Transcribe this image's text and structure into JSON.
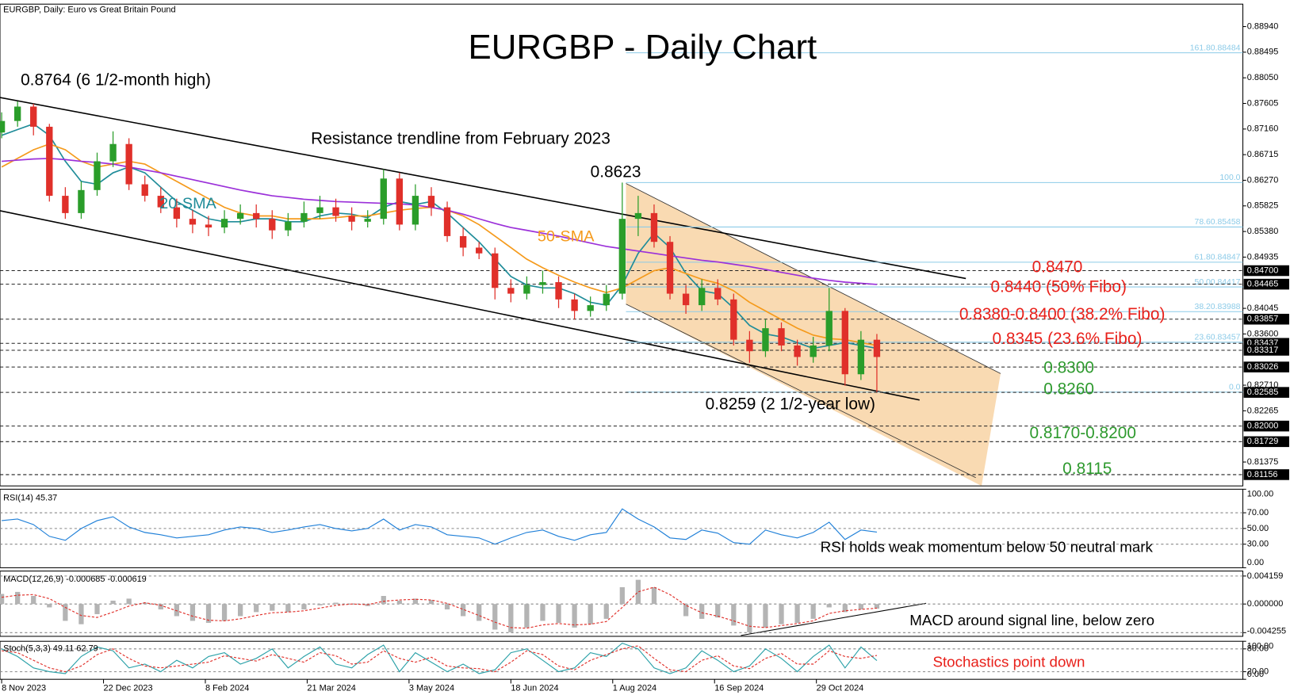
{
  "chart_data": [
    {
      "type": "candlestick",
      "header": "EURGBP, Daily:  Euro vs Great Britain Pound",
      "title": "EURGBP - Daily Chart",
      "annotations": [
        "0.8764 (6 1/2-month high)",
        "Resistance trendline from February 2023",
        "0.8623",
        "0.8259 (2 1/2-year low)"
      ],
      "resistance_labels": {
        "color": "#e8201a",
        "texts": [
          "0.8470",
          "0.8440 (50% Fibo)",
          "0.8380-0.8400 (38.2% Fibo)",
          "0.8345 (23.6% Fibo)"
        ]
      },
      "support_labels": {
        "color": "#2e9a2e",
        "texts": [
          "0.8300",
          "0.8260",
          "0.8170-0.8200",
          "0.8115"
        ]
      },
      "up_color": "#2a9d2a",
      "down_color": "#e0302a",
      "x": [
        0,
        5,
        10,
        15,
        20,
        25,
        30,
        35,
        40,
        45,
        50,
        55,
        60,
        65,
        70,
        75,
        80,
        85,
        90,
        95,
        100,
        105,
        110,
        115,
        120,
        125,
        130,
        135,
        140,
        145,
        150,
        155,
        160,
        165,
        170,
        175,
        180,
        185,
        190,
        195,
        200,
        205,
        210,
        215,
        220,
        225,
        230,
        235,
        240,
        245,
        250,
        255,
        260,
        265,
        270,
        275
      ],
      "open": [
        0.871,
        0.873,
        0.8755,
        0.872,
        0.86,
        0.857,
        0.861,
        0.866,
        0.869,
        0.862,
        0.86,
        0.858,
        0.856,
        0.855,
        0.8545,
        0.856,
        0.857,
        0.856,
        0.854,
        0.8555,
        0.857,
        0.858,
        0.8565,
        0.8555,
        0.856,
        0.863,
        0.855,
        0.86,
        0.858,
        0.853,
        0.851,
        0.85,
        0.844,
        0.843,
        0.8445,
        0.845,
        0.842,
        0.84,
        0.841,
        0.843,
        0.856,
        0.857,
        0.852,
        0.843,
        0.841,
        0.844,
        0.842,
        0.835,
        0.833,
        0.837,
        0.834,
        0.832,
        0.834,
        0.84,
        0.829,
        0.835
      ],
      "high": [
        0.8745,
        0.8764,
        0.876,
        0.8725,
        0.8615,
        0.8625,
        0.8675,
        0.8712,
        0.87,
        0.8635,
        0.8615,
        0.8595,
        0.8575,
        0.8565,
        0.8575,
        0.8585,
        0.8585,
        0.8575,
        0.857,
        0.859,
        0.86,
        0.8595,
        0.858,
        0.8575,
        0.8646,
        0.864,
        0.862,
        0.8615,
        0.859,
        0.8545,
        0.852,
        0.851,
        0.8455,
        0.846,
        0.847,
        0.846,
        0.843,
        0.8425,
        0.8445,
        0.8623,
        0.86,
        0.8585,
        0.853,
        0.8445,
        0.8455,
        0.8455,
        0.843,
        0.8365,
        0.8385,
        0.838,
        0.835,
        0.8355,
        0.844,
        0.8405,
        0.8365,
        0.836
      ],
      "low": [
        0.87,
        0.872,
        0.8705,
        0.859,
        0.856,
        0.856,
        0.86,
        0.865,
        0.861,
        0.859,
        0.857,
        0.8545,
        0.8535,
        0.853,
        0.8535,
        0.855,
        0.8545,
        0.8525,
        0.853,
        0.8545,
        0.856,
        0.8555,
        0.854,
        0.8545,
        0.855,
        0.854,
        0.854,
        0.8565,
        0.852,
        0.8495,
        0.849,
        0.842,
        0.8415,
        0.842,
        0.843,
        0.8405,
        0.8385,
        0.839,
        0.84,
        0.842,
        0.853,
        0.851,
        0.842,
        0.8395,
        0.84,
        0.841,
        0.834,
        0.831,
        0.832,
        0.833,
        0.8305,
        0.831,
        0.833,
        0.827,
        0.828,
        0.8259
      ],
      "close": [
        0.873,
        0.8755,
        0.872,
        0.86,
        0.857,
        0.861,
        0.866,
        0.869,
        0.862,
        0.86,
        0.858,
        0.856,
        0.855,
        0.8545,
        0.856,
        0.857,
        0.856,
        0.854,
        0.8555,
        0.857,
        0.858,
        0.8565,
        0.8555,
        0.856,
        0.863,
        0.855,
        0.86,
        0.858,
        0.853,
        0.851,
        0.85,
        0.844,
        0.843,
        0.8445,
        0.845,
        0.842,
        0.84,
        0.841,
        0.843,
        0.856,
        0.857,
        0.852,
        0.843,
        0.841,
        0.844,
        0.842,
        0.835,
        0.833,
        0.837,
        0.834,
        0.832,
        0.834,
        0.84,
        0.829,
        0.835,
        0.832
      ],
      "series": [
        {
          "name": "20-SMA",
          "color": "#1f8c99",
          "values": [
            0.8705,
            0.8715,
            0.8725,
            0.8705,
            0.866,
            0.8625,
            0.862,
            0.864,
            0.865,
            0.864,
            0.8615,
            0.859,
            0.8575,
            0.856,
            0.8555,
            0.8555,
            0.856,
            0.856,
            0.8555,
            0.8555,
            0.8565,
            0.857,
            0.8568,
            0.8562,
            0.858,
            0.859,
            0.8585,
            0.859,
            0.857,
            0.8545,
            0.852,
            0.849,
            0.846,
            0.8445,
            0.844,
            0.844,
            0.843,
            0.8415,
            0.841,
            0.8445,
            0.85,
            0.8535,
            0.851,
            0.8465,
            0.8435,
            0.843,
            0.8405,
            0.8375,
            0.836,
            0.8355,
            0.8345,
            0.8335,
            0.834,
            0.8345,
            0.834,
            0.8335
          ]
        },
        {
          "name": "50-SMA",
          "color": "#f59a1b",
          "values": [
            0.865,
            0.8665,
            0.868,
            0.869,
            0.868,
            0.866,
            0.865,
            0.8655,
            0.866,
            0.8655,
            0.864,
            0.8625,
            0.861,
            0.8595,
            0.858,
            0.857,
            0.8565,
            0.8565,
            0.856,
            0.856,
            0.856,
            0.8562,
            0.8565,
            0.8565,
            0.857,
            0.8575,
            0.8578,
            0.858,
            0.8575,
            0.8565,
            0.855,
            0.853,
            0.851,
            0.849,
            0.8475,
            0.8462,
            0.845,
            0.844,
            0.8432,
            0.844,
            0.8455,
            0.847,
            0.8475,
            0.8465,
            0.8455,
            0.8448,
            0.8435,
            0.8415,
            0.84,
            0.8385,
            0.837,
            0.8358,
            0.8352,
            0.835,
            0.8345,
            0.834
          ]
        },
        {
          "color": "#9b30d9",
          "values": [
            0.866,
            0.8662,
            0.8664,
            0.8665,
            0.8663,
            0.866,
            0.8658,
            0.8655,
            0.865,
            0.8645,
            0.864,
            0.8634,
            0.8628,
            0.8622,
            0.8616,
            0.861,
            0.8605,
            0.86,
            0.8597,
            0.8594,
            0.8592,
            0.859,
            0.8589,
            0.8588,
            0.8587,
            0.8586,
            0.8584,
            0.858,
            0.8575,
            0.8568,
            0.856,
            0.8552,
            0.8545,
            0.854,
            0.8535,
            0.853,
            0.8524,
            0.8518,
            0.8512,
            0.8508,
            0.8504,
            0.85,
            0.8496,
            0.8492,
            0.8488,
            0.8485,
            0.8481,
            0.8477,
            0.8472,
            0.8467,
            0.8462,
            0.8457,
            0.8453,
            0.845,
            0.8448,
            0.8446
          ]
        }
      ],
      "xlim": [
        -0.52,
        390
      ],
      "xticks": [
        {
          "value": 0,
          "label": "8 Nov 2023"
        },
        {
          "value": 32,
          "label": "22 Dec 2023"
        },
        {
          "value": 64,
          "label": "8 Feb 2024"
        },
        {
          "value": 96,
          "label": "21 Mar 2024"
        },
        {
          "value": 128,
          "label": "3 May 2024"
        },
        {
          "value": 160,
          "label": "18 Jun 2024"
        },
        {
          "value": 192,
          "label": "1 Aug 2024"
        },
        {
          "value": 224,
          "label": "16 Sep 2024"
        },
        {
          "value": 256,
          "label": "29 Oct 2024"
        }
      ],
      "ylim": [
        0.8096,
        0.8933
      ],
      "yticks": [
        {
          "value": 0.8894,
          "label": "0.88940"
        },
        0.88495,
        {
          "value": 0.8805,
          "label": "0.88050"
        },
        0.87605,
        {
          "value": 0.8716,
          "label": "0.87160"
        },
        0.86715,
        {
          "value": 0.8627,
          "label": "0.86270"
        },
        0.85825,
        {
          "value": 0.8538,
          "label": "0.85380"
        },
        0.84935,
        0.84045,
        {
          "value": 0.836,
          "label": "0.83600"
        },
        {
          "value": 0.8271,
          "label": "0.82710"
        },
        0.82265,
        0.81375
      ],
      "levels": [
        {
          "value": 0.847,
          "label": "0.84700"
        },
        0.84465,
        0.83857,
        0.83437,
        0.83317,
        0.83026,
        0.82585,
        {
          "value": 0.82,
          "label": "0.82000"
        },
        0.81729,
        0.81156
      ],
      "fibo_color": "#8ccbe8",
      "fibo": [
        {
          "level": "161.8",
          "price": 0.88484
        },
        {
          "level": "100.0",
          "y": 0.8623
        },
        {
          "level": "78.6",
          "price": 0.85458
        },
        {
          "level": "61.8",
          "price": 0.84847
        },
        {
          "level": "50.0",
          "price": 0.84417
        },
        {
          "level": "38.2",
          "price": 0.83988
        },
        {
          "level": "23.6",
          "price": 0.83457
        },
        {
          "level": "0.0",
          "y": 0.8259
        }
      ]
    },
    {
      "type": "line",
      "header": "RSI(14) 45.37",
      "annotation": "RSI holds weak momentum below 50 neutral mark",
      "ylim": [
        0,
        100
      ],
      "yticks": [
        {
          "value": 100,
          "label": "100.00"
        },
        {
          "value": 70,
          "label": "70.00"
        },
        {
          "value": 50,
          "label": "50.00"
        },
        {
          "value": 30,
          "label": "30.00"
        },
        {
          "value": 0,
          "label": "0.00"
        }
      ],
      "series": [
        {
          "color": "#1e7fd8",
          "values": [
            60,
            62,
            55,
            40,
            35,
            50,
            60,
            65,
            52,
            45,
            42,
            38,
            40,
            42,
            48,
            52,
            50,
            45,
            48,
            52,
            55,
            50,
            47,
            50,
            62,
            48,
            55,
            52,
            42,
            40,
            38,
            30,
            38,
            45,
            48,
            40,
            35,
            42,
            45,
            75,
            62,
            52,
            38,
            36,
            48,
            44,
            32,
            30,
            48,
            42,
            38,
            45,
            58,
            36,
            48,
            45.37
          ]
        }
      ]
    },
    {
      "type": "macd",
      "header": "MACD(12,26,9) -0.000685 -0.000619",
      "annotation": "MACD around signal line, below zero",
      "ylim": [
        -0.0048,
        0.0049
      ],
      "yticks": [
        0.004159,
        {
          "value": 0,
          "label": "0.000000"
        },
        -0.004255
      ],
      "histogram": {
        "color": "#b4b4b4",
        "values": [
          0.0015,
          0.0018,
          0.0012,
          -0.0005,
          -0.0025,
          -0.003,
          -0.0015,
          0.0005,
          0.0008,
          0.0002,
          -0.0008,
          -0.0018,
          -0.0025,
          -0.0028,
          -0.0025,
          -0.0018,
          -0.0012,
          -0.001,
          -0.0012,
          -0.0008,
          -0.0002,
          0.0002,
          0,
          -0.0003,
          0.0012,
          0.0005,
          0.0008,
          0.0006,
          -0.0008,
          -0.0018,
          -0.0025,
          -0.0038,
          -0.0042,
          -0.0035,
          -0.0025,
          -0.0028,
          -0.0035,
          -0.003,
          -0.0022,
          0.0025,
          0.0036,
          0.0025,
          0,
          -0.0018,
          -0.0022,
          -0.002,
          -0.0032,
          -0.0042,
          -0.0035,
          -0.003,
          -0.0028,
          -0.0022,
          -0.0005,
          -0.0012,
          -0.0008,
          -0.000685
        ]
      },
      "series": [
        {
          "color": "#e0302a",
          "dashed": true,
          "values": [
            0.001,
            0.0013,
            0.0014,
            0.0008,
            -0.0005,
            -0.0017,
            -0.002,
            -0.0012,
            -0.0003,
            0.0002,
            -0.0002,
            -0.001,
            -0.0018,
            -0.0024,
            -0.0025,
            -0.0022,
            -0.0017,
            -0.0013,
            -0.0012,
            -0.001,
            -0.0006,
            -0.0002,
            0,
            -0.0001,
            0.0004,
            0.0006,
            0.0007,
            0.0006,
            0.0001,
            -0.0008,
            -0.0017,
            -0.0027,
            -0.0035,
            -0.0036,
            -0.0031,
            -0.0029,
            -0.0031,
            -0.003,
            -0.0026,
            -0.0005,
            0.0018,
            0.0025,
            0.0014,
            -0.0002,
            -0.0013,
            -0.0018,
            -0.0025,
            -0.0033,
            -0.0035,
            -0.0032,
            -0.0029,
            -0.0025,
            -0.0014,
            -0.001,
            -0.0008,
            -0.000619
          ]
        }
      ]
    },
    {
      "type": "line",
      "header": "Stoch(5,3,3) 49.11 62.79",
      "annotation": "Stochastics point down",
      "annotation_color": "#e8201a",
      "ylim": [
        0,
        100
      ],
      "yticks": [
        {
          "value": 100,
          "label": "100.00"
        },
        {
          "value": 80,
          "label": "80.00"
        },
        {
          "value": 20,
          "label": "20.00"
        },
        {
          "value": 0,
          "label": "0.00"
        }
      ],
      "series": [
        {
          "color": "#2aa1a8",
          "values": [
            80,
            60,
            30,
            20,
            15,
            60,
            85,
            75,
            30,
            40,
            20,
            50,
            30,
            60,
            70,
            40,
            55,
            80,
            30,
            60,
            85,
            40,
            30,
            65,
            90,
            20,
            70,
            45,
            20,
            40,
            15,
            25,
            70,
            80,
            50,
            20,
            30,
            70,
            60,
            95,
            80,
            30,
            15,
            30,
            75,
            50,
            20,
            35,
            80,
            55,
            20,
            60,
            90,
            30,
            85,
            49.11
          ]
        },
        {
          "color": "#e0302a",
          "dashed": true,
          "values": [
            75,
            70,
            50,
            30,
            20,
            35,
            65,
            80,
            55,
            35,
            30,
            35,
            40,
            45,
            62,
            55,
            48,
            65,
            55,
            45,
            70,
            62,
            40,
            45,
            75,
            55,
            45,
            58,
            35,
            30,
            28,
            20,
            45,
            75,
            65,
            35,
            25,
            50,
            65,
            80,
            88,
            55,
            25,
            20,
            50,
            62,
            35,
            28,
            55,
            68,
            40,
            40,
            75,
            60,
            55,
            62.79
          ]
        }
      ]
    }
  ]
}
